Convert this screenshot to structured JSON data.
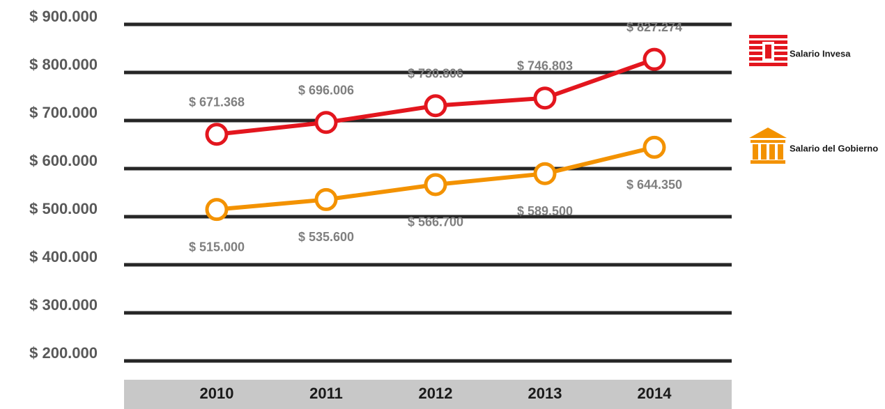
{
  "chart_data": {
    "type": "line",
    "categories": [
      "2010",
      "2011",
      "2012",
      "2013",
      "2014"
    ],
    "series": [
      {
        "name": "Salario Invesa",
        "color": "#e3161e",
        "values": [
          671368,
          696006,
          730806,
          746803,
          827274
        ],
        "value_labels": [
          "$ 671.368",
          "$ 696.006",
          "$ 730.806",
          "$ 746.803",
          "$ 827.274"
        ]
      },
      {
        "name": "Salario del Gobierno",
        "color": "#f39200",
        "values": [
          515000,
          535600,
          566700,
          589500,
          644350
        ],
        "value_labels": [
          "$ 515.000",
          "$ 535.600",
          "$ 566.700",
          "$ 589.500",
          "$ 644.350"
        ]
      }
    ],
    "ylim": [
      200000,
      900000
    ],
    "yticks": [
      {
        "value": 200000,
        "label": "$ 200.000"
      },
      {
        "value": 300000,
        "label": "$ 300.000"
      },
      {
        "value": 400000,
        "label": "$ 400.000"
      },
      {
        "value": 500000,
        "label": "$ 500.000"
      },
      {
        "value": 600000,
        "label": "$ 600.000"
      },
      {
        "value": 700000,
        "label": "$ 700.000"
      },
      {
        "value": 800000,
        "label": "$ 800.000"
      },
      {
        "value": 900000,
        "label": "$ 900.000"
      }
    ],
    "grid": true
  }
}
